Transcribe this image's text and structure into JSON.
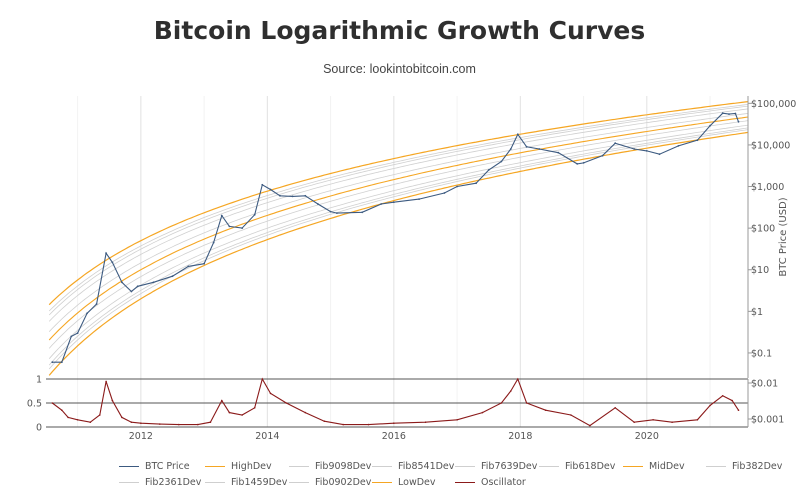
{
  "page": {
    "title": "Bitcoin Logarithmic Growth Curves",
    "subtitle": "Source: lookintobitcoin.com"
  },
  "chart_data": [
    {
      "type": "line",
      "title": "Bitcoin Logarithmic Growth Curves",
      "subtitle": "Source: lookintobitcoin.com",
      "xlabel": "",
      "ylabel": "BTC Price (USD)",
      "y_scale": "log",
      "ylim": [
        0.025,
        150000
      ],
      "xlim": [
        2010.5,
        2021.6
      ],
      "x_ticks": [
        "2012",
        "2014",
        "2016",
        "2018",
        "2020"
      ],
      "y_ticks": [
        "$0.1",
        "$1",
        "$10",
        "$100",
        "$1,000",
        "$10,000",
        "$100,000"
      ],
      "grid": true,
      "legend_position": "bottom",
      "colors": {
        "price": "#3c5a80",
        "bands_outer": "#f5a623",
        "bands_inner": "#c8c8c8",
        "oscillator": "#8b1a1a"
      },
      "series": [
        {
          "name": "BTC Price",
          "color": "#3c5a80",
          "x": [
            2010.6,
            2010.75,
            2010.9,
            2011.0,
            2011.15,
            2011.3,
            2011.45,
            2011.55,
            2011.7,
            2011.85,
            2011.95,
            2012.2,
            2012.5,
            2012.75,
            2013.0,
            2013.15,
            2013.28,
            2013.4,
            2013.6,
            2013.8,
            2013.92,
            2014.05,
            2014.2,
            2014.4,
            2014.6,
            2014.8,
            2015.0,
            2015.1,
            2015.5,
            2015.8,
            2016.0,
            2016.4,
            2016.8,
            2017.0,
            2017.3,
            2017.5,
            2017.7,
            2017.85,
            2017.96,
            2018.1,
            2018.3,
            2018.6,
            2018.9,
            2019.0,
            2019.3,
            2019.5,
            2019.8,
            2020.0,
            2020.2,
            2020.5,
            2020.8,
            2021.0,
            2021.2,
            2021.3,
            2021.4,
            2021.45
          ],
          "values": [
            0.06,
            0.06,
            0.25,
            0.3,
            0.9,
            1.5,
            25,
            15,
            5,
            3,
            4,
            5,
            7,
            12,
            14,
            45,
            200,
            110,
            100,
            210,
            1100,
            850,
            600,
            580,
            600,
            380,
            250,
            230,
            240,
            380,
            420,
            500,
            700,
            1000,
            1200,
            2500,
            4000,
            8000,
            18000,
            9000,
            8000,
            6500,
            3500,
            3700,
            5500,
            11000,
            8000,
            7200,
            6000,
            9500,
            13000,
            29000,
            58000,
            55000,
            57000,
            36000
          ]
        },
        {
          "name": "HighDev",
          "color": "#f5a623",
          "values_at_x": {
            "2010.6": 0.6,
            "2012": 50,
            "2014": 1500,
            "2016": 6500,
            "2018": 18000,
            "2020": 45000,
            "2021.6": 110000
          }
        },
        {
          "name": "Fib9098Dev",
          "color": "#c8c8c8"
        },
        {
          "name": "Fib8541Dev",
          "color": "#c8c8c8"
        },
        {
          "name": "Fib7639Dev",
          "color": "#c8c8c8"
        },
        {
          "name": "Fib618Dev",
          "color": "#c8c8c8"
        },
        {
          "name": "MidDev",
          "color": "#f5a623"
        },
        {
          "name": "Fib382Dev",
          "color": "#c8c8c8"
        },
        {
          "name": "Fib2361Dev",
          "color": "#c8c8c8"
        },
        {
          "name": "Fib1459Dev",
          "color": "#c8c8c8"
        },
        {
          "name": "Fib0902Dev",
          "color": "#c8c8c8"
        },
        {
          "name": "LowDev",
          "color": "#f5a623",
          "values_at_x": {
            "2010.6": 0.025,
            "2012": 2,
            "2014": 35,
            "2016": 250,
            "2018": 1200,
            "2020": 5000,
            "2021.6": 20000
          }
        }
      ]
    },
    {
      "type": "line",
      "ylim": [
        0,
        1
      ],
      "y_ticks_left": [
        "1",
        "0.5",
        "0"
      ],
      "y_ticks_right": [
        "$0.01",
        "$0.001"
      ],
      "series": [
        {
          "name": "Oscillator",
          "color": "#8b1a1a",
          "x": [
            2010.6,
            2010.75,
            2010.85,
            2011.0,
            2011.2,
            2011.35,
            2011.45,
            2011.55,
            2011.7,
            2011.85,
            2012.0,
            2012.3,
            2012.6,
            2012.9,
            2013.1,
            2013.28,
            2013.4,
            2013.6,
            2013.8,
            2013.92,
            2014.05,
            2014.3,
            2014.6,
            2014.9,
            2015.2,
            2015.6,
            2016.0,
            2016.5,
            2017.0,
            2017.4,
            2017.7,
            2017.85,
            2017.96,
            2018.1,
            2018.4,
            2018.8,
            2019.1,
            2019.5,
            2019.8,
            2020.1,
            2020.4,
            2020.8,
            2021.0,
            2021.2,
            2021.35,
            2021.45
          ],
          "values": [
            0.5,
            0.35,
            0.2,
            0.15,
            0.1,
            0.25,
            0.95,
            0.55,
            0.2,
            0.1,
            0.08,
            0.06,
            0.05,
            0.05,
            0.1,
            0.55,
            0.3,
            0.25,
            0.4,
            1.0,
            0.7,
            0.5,
            0.3,
            0.12,
            0.05,
            0.05,
            0.08,
            0.1,
            0.15,
            0.3,
            0.5,
            0.75,
            1.0,
            0.5,
            0.35,
            0.25,
            0.03,
            0.4,
            0.1,
            0.15,
            0.1,
            0.15,
            0.45,
            0.65,
            0.55,
            0.35
          ]
        }
      ]
    }
  ],
  "legend": {
    "items": [
      {
        "label": "BTC Price",
        "color": "#3c5a80"
      },
      {
        "label": "HighDev",
        "color": "#f5a623"
      },
      {
        "label": "Fib9098Dev",
        "color": "#cfcfcf"
      },
      {
        "label": "Fib8541Dev",
        "color": "#cfcfcf"
      },
      {
        "label": "Fib7639Dev",
        "color": "#cfcfcf"
      },
      {
        "label": "Fib618Dev",
        "color": "#cfcfcf"
      },
      {
        "label": "MidDev",
        "color": "#f5a623"
      },
      {
        "label": "Fib382Dev",
        "color": "#cfcfcf"
      },
      {
        "label": "Fib2361Dev",
        "color": "#cfcfcf"
      },
      {
        "label": "Fib1459Dev",
        "color": "#cfcfcf"
      },
      {
        "label": "Fib0902Dev",
        "color": "#cfcfcf"
      },
      {
        "label": "LowDev",
        "color": "#f5a623"
      },
      {
        "label": "Oscillator",
        "color": "#8b1a1a"
      }
    ]
  }
}
